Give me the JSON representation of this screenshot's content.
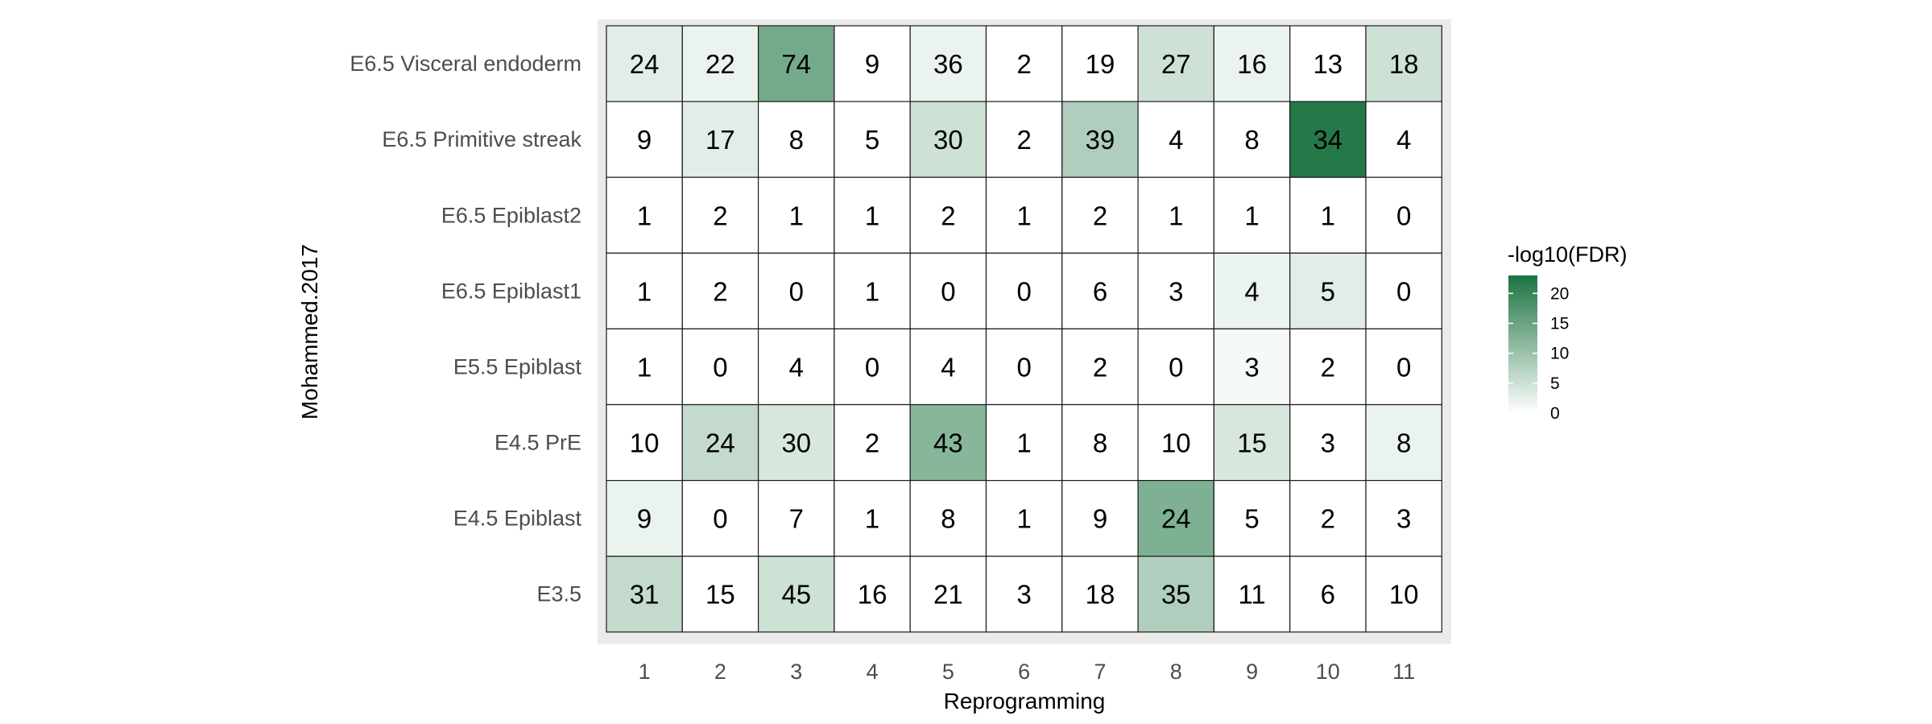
{
  "chart_data": {
    "type": "heatmap",
    "title": "",
    "xlabel": "Reprogramming",
    "ylabel": "Mohammed.2017",
    "x_categories": [
      "1",
      "2",
      "3",
      "4",
      "5",
      "6",
      "7",
      "8",
      "9",
      "10",
      "11"
    ],
    "y_categories": [
      "E6.5 Visceral endoderm",
      "E6.5 Primitive streak",
      "E6.5 Epiblast2",
      "E6.5 Epiblast1",
      "E5.5 Epiblast",
      "E4.5 PrE",
      "E4.5 Epiblast",
      "E3.5"
    ],
    "counts": [
      [
        24,
        22,
        74,
        9,
        36,
        2,
        19,
        27,
        16,
        13,
        18
      ],
      [
        9,
        17,
        8,
        5,
        30,
        2,
        39,
        4,
        8,
        34,
        4
      ],
      [
        1,
        2,
        1,
        1,
        2,
        1,
        2,
        1,
        1,
        1,
        0
      ],
      [
        1,
        2,
        0,
        1,
        0,
        0,
        6,
        3,
        4,
        5,
        0
      ],
      [
        1,
        0,
        4,
        0,
        4,
        0,
        2,
        0,
        3,
        2,
        0
      ],
      [
        10,
        24,
        30,
        2,
        43,
        1,
        8,
        10,
        15,
        3,
        8
      ],
      [
        9,
        0,
        7,
        1,
        8,
        1,
        9,
        24,
        5,
        2,
        3
      ],
      [
        31,
        15,
        45,
        16,
        21,
        3,
        18,
        35,
        11,
        6,
        10
      ]
    ],
    "fill_values": [
      [
        3,
        2,
        14,
        0,
        2,
        0,
        0,
        5,
        2,
        0,
        5
      ],
      [
        0,
        3,
        0,
        0,
        5,
        0,
        8,
        0,
        0,
        22,
        0
      ],
      [
        0,
        0,
        0,
        0,
        0,
        0,
        0,
        0,
        0,
        0,
        0
      ],
      [
        0,
        0,
        0,
        0,
        0,
        0,
        0,
        0,
        2,
        3,
        0
      ],
      [
        0,
        0,
        0,
        0,
        0,
        0,
        0,
        0,
        1,
        0,
        0
      ],
      [
        0,
        6,
        4,
        0,
        12,
        0,
        0,
        0,
        4,
        0,
        2
      ],
      [
        2,
        0,
        0,
        0,
        0,
        0,
        0,
        13,
        0,
        0,
        0
      ],
      [
        6,
        0,
        5,
        0,
        0,
        0,
        0,
        8,
        0,
        0,
        0
      ]
    ],
    "legend": {
      "title": "-log10(FDR)",
      "ticks": [
        0,
        5,
        10,
        15,
        20
      ],
      "range": [
        0,
        23
      ],
      "color_low": "#ffffff",
      "color_high": "#1b7340"
    },
    "panel_background": "#ebebeb"
  }
}
